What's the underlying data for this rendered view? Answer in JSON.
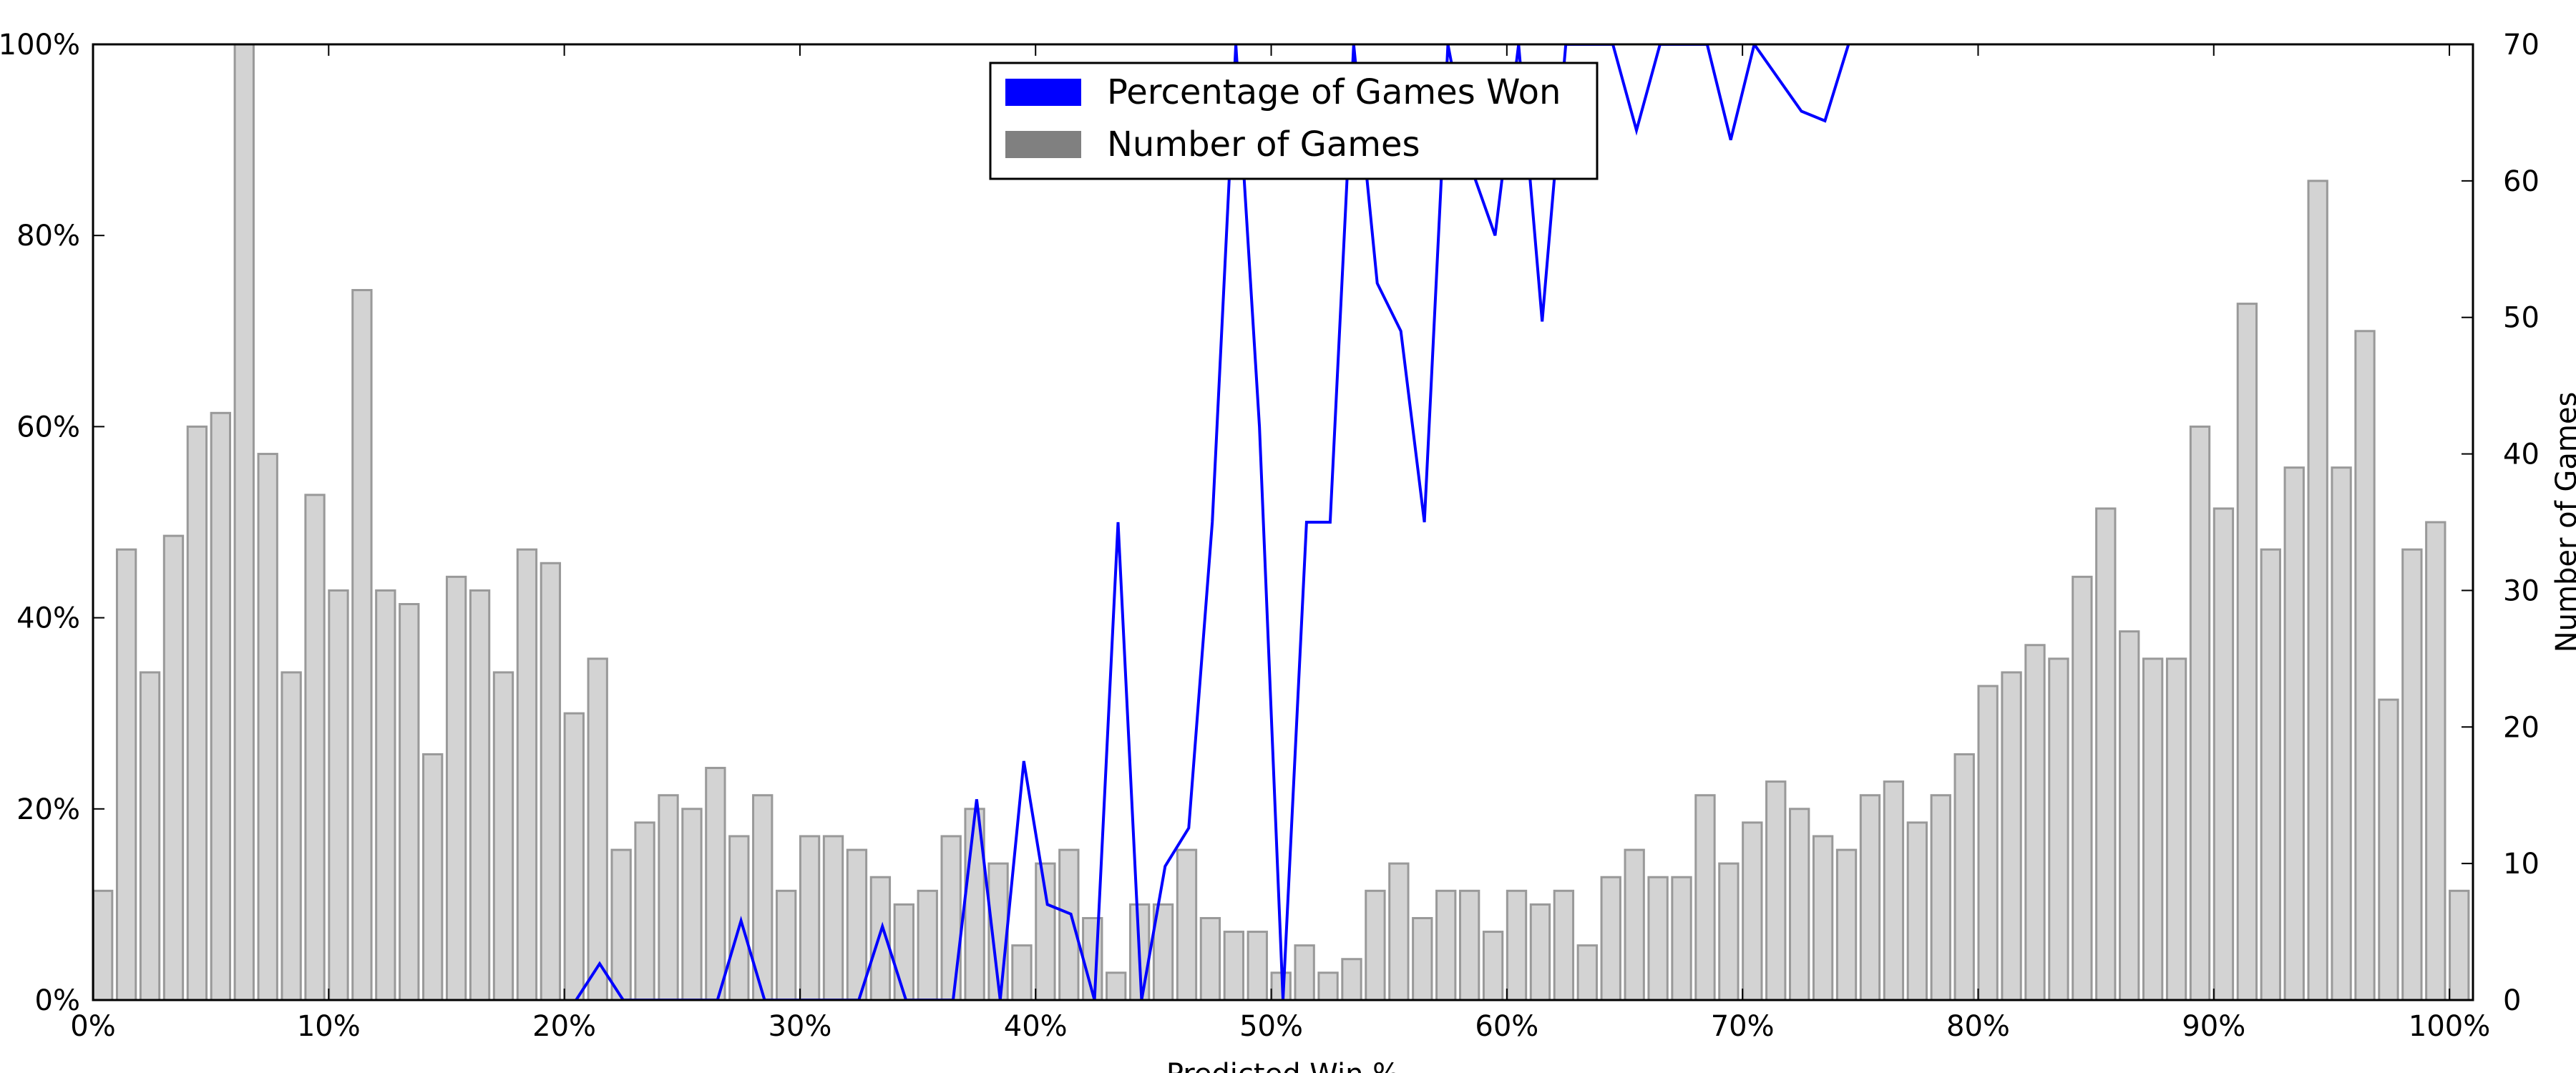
{
  "chart_data": {
    "type": "bar",
    "xlabel": "Predicted Win %",
    "y2label": "Number of Games",
    "xlim": [
      0,
      101
    ],
    "ylim": [
      0,
      100
    ],
    "y2lim": [
      0,
      70
    ],
    "x_ticks": [
      0,
      10,
      20,
      30,
      40,
      50,
      60,
      70,
      80,
      90,
      100
    ],
    "x_tick_labels": [
      "0%",
      "10%",
      "20%",
      "30%",
      "40%",
      "50%",
      "60%",
      "70%",
      "80%",
      "90%",
      "100%"
    ],
    "y_ticks": [
      0,
      20,
      40,
      60,
      80,
      100
    ],
    "y_tick_labels": [
      "0%",
      "20%",
      "40%",
      "60%",
      "80%",
      "100%"
    ],
    "y2_ticks": [
      0,
      10,
      20,
      30,
      40,
      50,
      60,
      70
    ],
    "y2_tick_labels": [
      "0",
      "10",
      "20",
      "30",
      "40",
      "50",
      "60",
      "70"
    ],
    "legend": {
      "position": "top-center",
      "entries": [
        {
          "label": "Percentage of Games Won",
          "color": "#0000ff"
        },
        {
          "label": "Number of Games",
          "color": "#808080"
        }
      ]
    },
    "bar_color": "#d3d3d3",
    "bar_edge_color": "#999999",
    "line_color": "#0000ff",
    "series": [
      {
        "name": "Number of Games",
        "kind": "bar",
        "x": [
          0,
          1,
          2,
          3,
          4,
          5,
          6,
          7,
          8,
          9,
          10,
          11,
          12,
          13,
          14,
          15,
          16,
          17,
          18,
          19,
          20,
          21,
          22,
          23,
          24,
          25,
          26,
          27,
          28,
          29,
          30,
          31,
          32,
          33,
          34,
          35,
          36,
          37,
          38,
          39,
          40,
          41,
          42,
          43,
          44,
          45,
          46,
          47,
          48,
          49,
          50,
          51,
          52,
          53,
          54,
          55,
          56,
          57,
          58,
          59,
          60,
          61,
          62,
          63,
          64,
          65,
          66,
          67,
          68,
          69,
          70,
          71,
          72,
          73,
          74,
          75,
          76,
          77,
          78,
          79,
          80,
          81,
          82,
          83,
          84,
          85,
          86,
          87,
          88,
          89,
          90,
          91,
          92,
          93,
          94,
          95,
          96,
          97,
          98,
          99,
          100
        ],
        "values": [
          8,
          33,
          24,
          34,
          42,
          43,
          70,
          40,
          24,
          37,
          30,
          52,
          30,
          29,
          18,
          31,
          30,
          24,
          33,
          32,
          21,
          25,
          11,
          13,
          15,
          14,
          17,
          12,
          15,
          8,
          12,
          12,
          11,
          9,
          7,
          8,
          12,
          14,
          10,
          4,
          10,
          11,
          6,
          2,
          7,
          7,
          11,
          6,
          5,
          5,
          2,
          4,
          2,
          3,
          8,
          10,
          6,
          8,
          8,
          5,
          8,
          7,
          8,
          4,
          9,
          11,
          9,
          9,
          15,
          10,
          13,
          16,
          14,
          12,
          11,
          15,
          16,
          13,
          15,
          18,
          23,
          24,
          26,
          25,
          31,
          36,
          27,
          25,
          25,
          42,
          36,
          51,
          33,
          39,
          60,
          39,
          49,
          22,
          33,
          35,
          8
        ]
      },
      {
        "name": "Percentage of Games Won",
        "kind": "line",
        "x": [
          20,
          21,
          22,
          26,
          27,
          28,
          32,
          33,
          34,
          36,
          37,
          38,
          39,
          40,
          41,
          42,
          43,
          44,
          45,
          46,
          47,
          48,
          49,
          50,
          51,
          52,
          53,
          54,
          55,
          56,
          57,
          58,
          59,
          60,
          61,
          62,
          64,
          65,
          66,
          68,
          69,
          70,
          72,
          73,
          74
        ],
        "values": [
          0,
          3.8,
          0,
          0,
          8.3,
          0,
          0,
          7.7,
          0,
          0,
          21,
          0,
          25,
          10,
          9,
          0,
          50,
          0,
          14,
          18,
          50,
          100,
          60,
          0,
          50,
          50,
          100,
          75,
          70,
          50,
          100,
          87,
          80,
          100,
          71,
          100,
          100,
          91,
          100,
          100,
          90,
          100,
          93,
          92,
          100
        ]
      }
    ]
  }
}
